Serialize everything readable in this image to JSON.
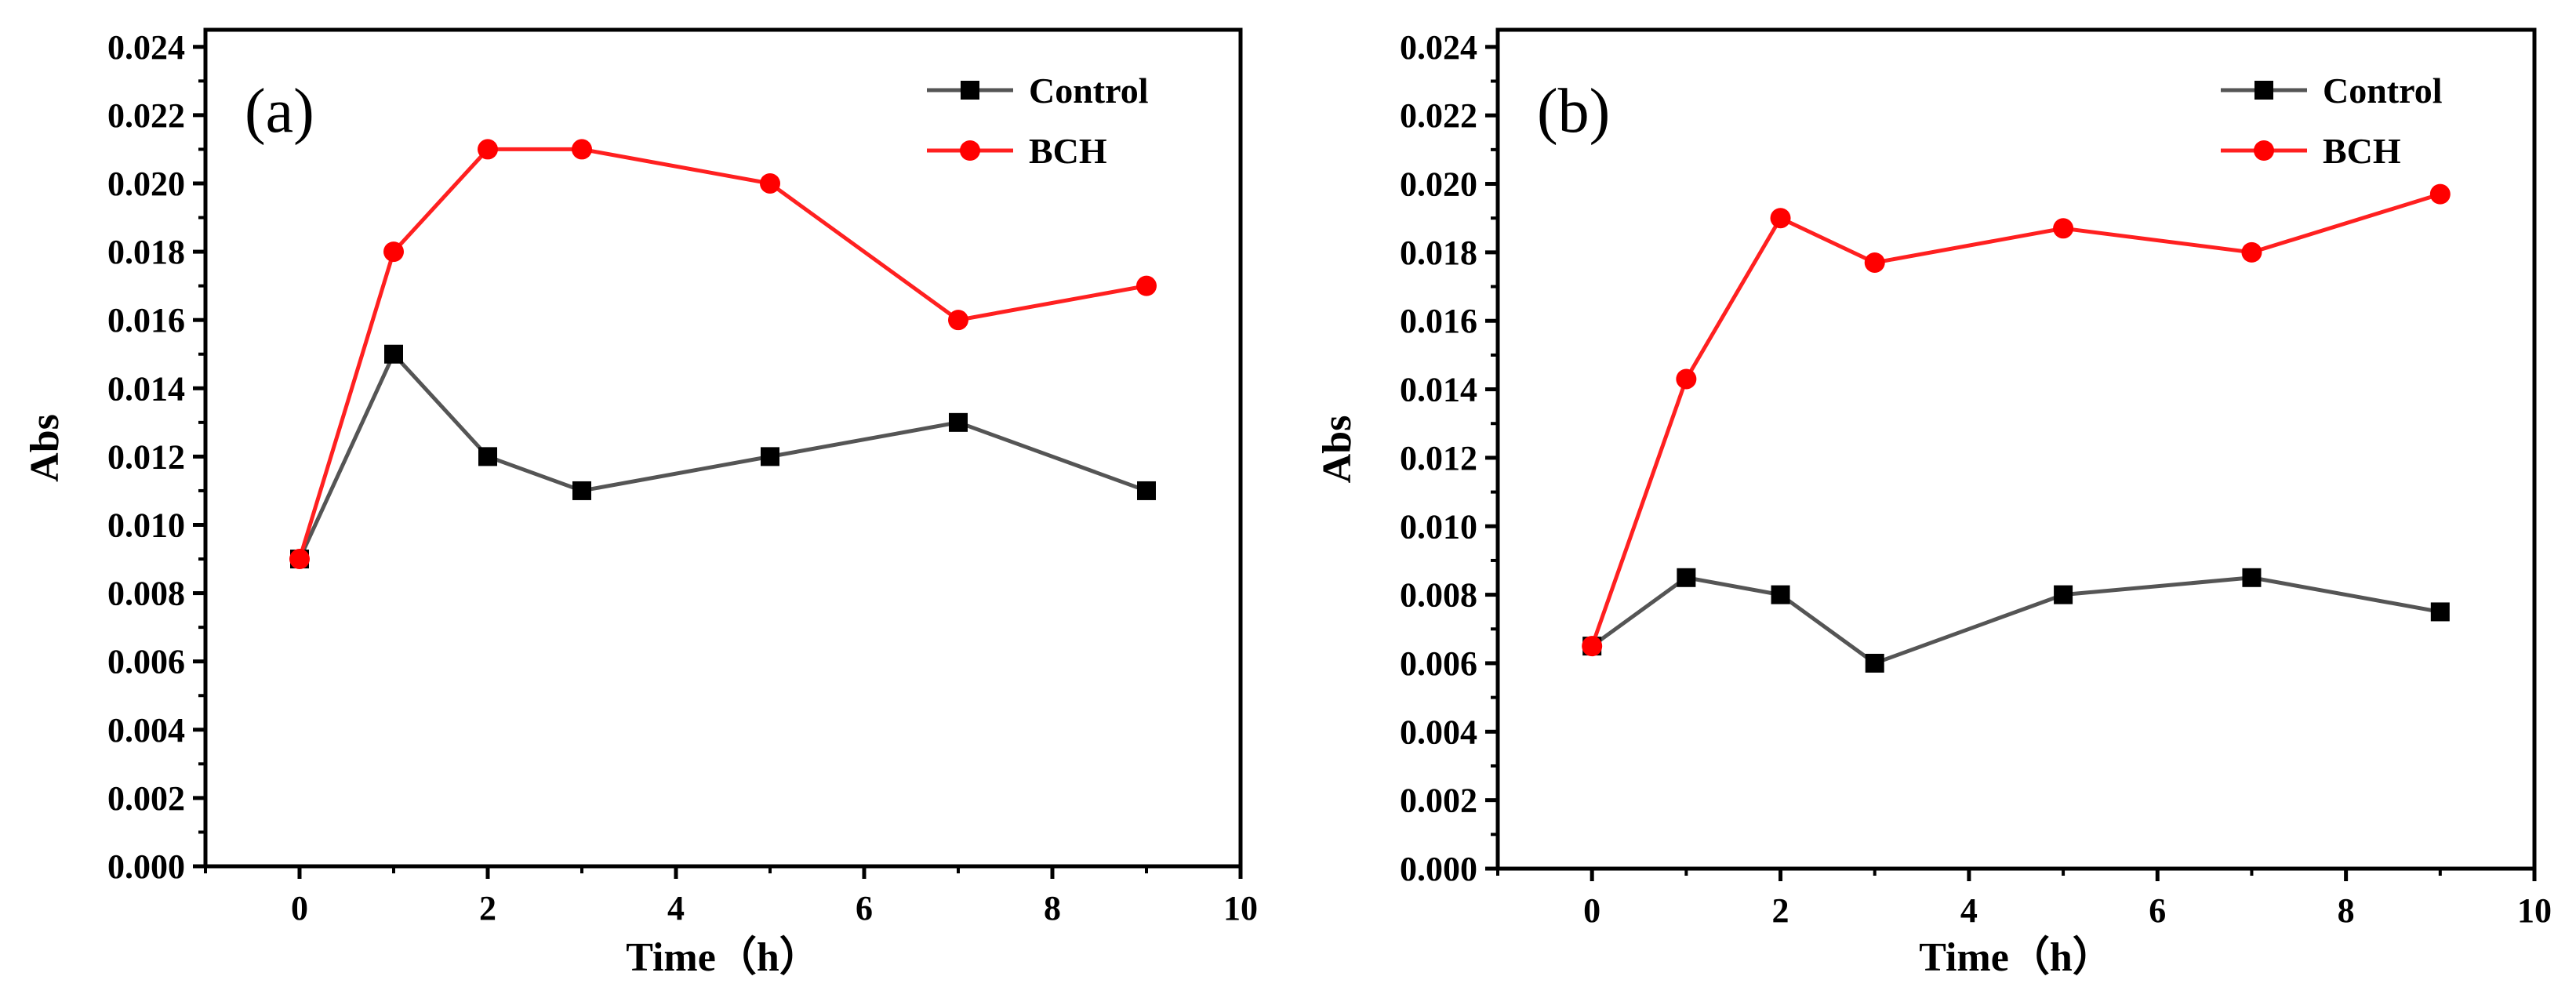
{
  "chart_data": [
    {
      "type": "line",
      "panel_label": "(a)",
      "xlabel": "Time（h）",
      "ylabel": "Abs",
      "xlim": [
        -1,
        10
      ],
      "ylim": [
        0,
        0.0245
      ],
      "xticks": [
        0,
        2,
        4,
        6,
        8,
        10
      ],
      "xtick_labels": [
        "0",
        "2",
        "4",
        "6",
        "8",
        "10"
      ],
      "yticks": [
        0,
        0.002,
        0.004,
        0.006,
        0.008,
        0.01,
        0.012,
        0.014,
        0.016,
        0.018,
        0.02,
        0.022,
        0.024
      ],
      "ytick_labels": [
        "0.000",
        "0.002",
        "0.004",
        "0.006",
        "0.008",
        "0.010",
        "0.012",
        "0.014",
        "0.016",
        "0.018",
        "0.020",
        "0.022",
        "0.024"
      ],
      "grid": false,
      "legend_position": "top-right",
      "series": [
        {
          "name": "Control",
          "color": "#555555",
          "marker_color": "#000000",
          "marker": "square",
          "x": [
            0,
            1,
            2,
            3,
            5,
            7,
            9
          ],
          "y": [
            0.009,
            0.015,
            0.012,
            0.011,
            0.012,
            0.013,
            0.011
          ]
        },
        {
          "name": "BCH",
          "color": "#ff2020",
          "marker_color": "#ff0000",
          "marker": "circle",
          "x": [
            0,
            1,
            2,
            3,
            5,
            7,
            9
          ],
          "y": [
            0.009,
            0.018,
            0.021,
            0.021,
            0.02,
            0.016,
            0.017
          ]
        }
      ]
    },
    {
      "type": "line",
      "panel_label": "(b)",
      "xlabel": "Time（h）",
      "ylabel": "Abs",
      "xlim": [
        -1,
        10
      ],
      "ylim": [
        0,
        0.0245
      ],
      "xticks": [
        0,
        2,
        4,
        6,
        8,
        10
      ],
      "xtick_labels": [
        "0",
        "2",
        "4",
        "6",
        "8",
        "10"
      ],
      "yticks": [
        0,
        0.002,
        0.004,
        0.006,
        0.008,
        0.01,
        0.012,
        0.014,
        0.016,
        0.018,
        0.02,
        0.022,
        0.024
      ],
      "ytick_labels": [
        "0.000",
        "0.002",
        "0.004",
        "0.006",
        "0.008",
        "0.010",
        "0.012",
        "0.014",
        "0.016",
        "0.018",
        "0.020",
        "0.022",
        "0.024"
      ],
      "grid": false,
      "legend_position": "top-right",
      "series": [
        {
          "name": "Control",
          "color": "#555555",
          "marker_color": "#000000",
          "marker": "square",
          "x": [
            0,
            1,
            2,
            3,
            5,
            7,
            9
          ],
          "y": [
            0.0065,
            0.0085,
            0.008,
            0.006,
            0.008,
            0.0085,
            0.0075
          ]
        },
        {
          "name": "BCH",
          "color": "#ff2020",
          "marker_color": "#ff0000",
          "marker": "circle",
          "x": [
            0,
            1,
            2,
            3,
            5,
            7,
            9
          ],
          "y": [
            0.0065,
            0.0143,
            0.019,
            0.0177,
            0.0187,
            0.018,
            0.0197
          ]
        }
      ]
    }
  ]
}
